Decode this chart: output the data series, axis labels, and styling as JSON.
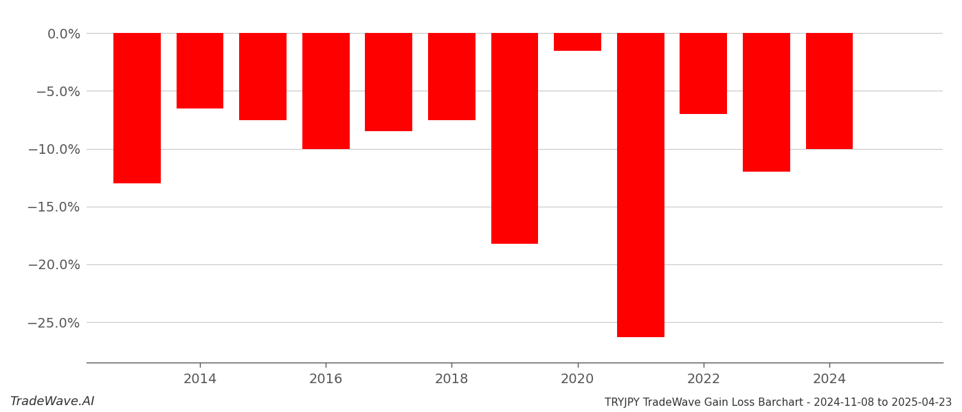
{
  "years": [
    2013,
    2014,
    2015,
    2016,
    2017,
    2018,
    2019,
    2020,
    2021,
    2022,
    2023,
    2024
  ],
  "values": [
    -13.0,
    -6.5,
    -7.5,
    -10.0,
    -8.5,
    -7.5,
    -18.2,
    -1.5,
    -26.3,
    -7.0,
    -12.0,
    -10.0
  ],
  "bar_color": "#ff0000",
  "background_color": "#ffffff",
  "grid_color": "#c8c8c8",
  "text_color": "#555555",
  "ylabel_values": [
    0.0,
    -5.0,
    -10.0,
    -15.0,
    -20.0,
    -25.0
  ],
  "ylim": [
    -28.5,
    1.8
  ],
  "xlim": [
    2012.2,
    2025.8
  ],
  "footer_left": "TradeWave.AI",
  "footer_right": "TRYJPY TradeWave Gain Loss Barchart - 2024-11-08 to 2025-04-23",
  "xtick_labels": [
    "2014",
    "2016",
    "2018",
    "2020",
    "2022",
    "2024"
  ],
  "xtick_positions": [
    2014,
    2016,
    2018,
    2020,
    2022,
    2024
  ],
  "bar_width": 0.75
}
